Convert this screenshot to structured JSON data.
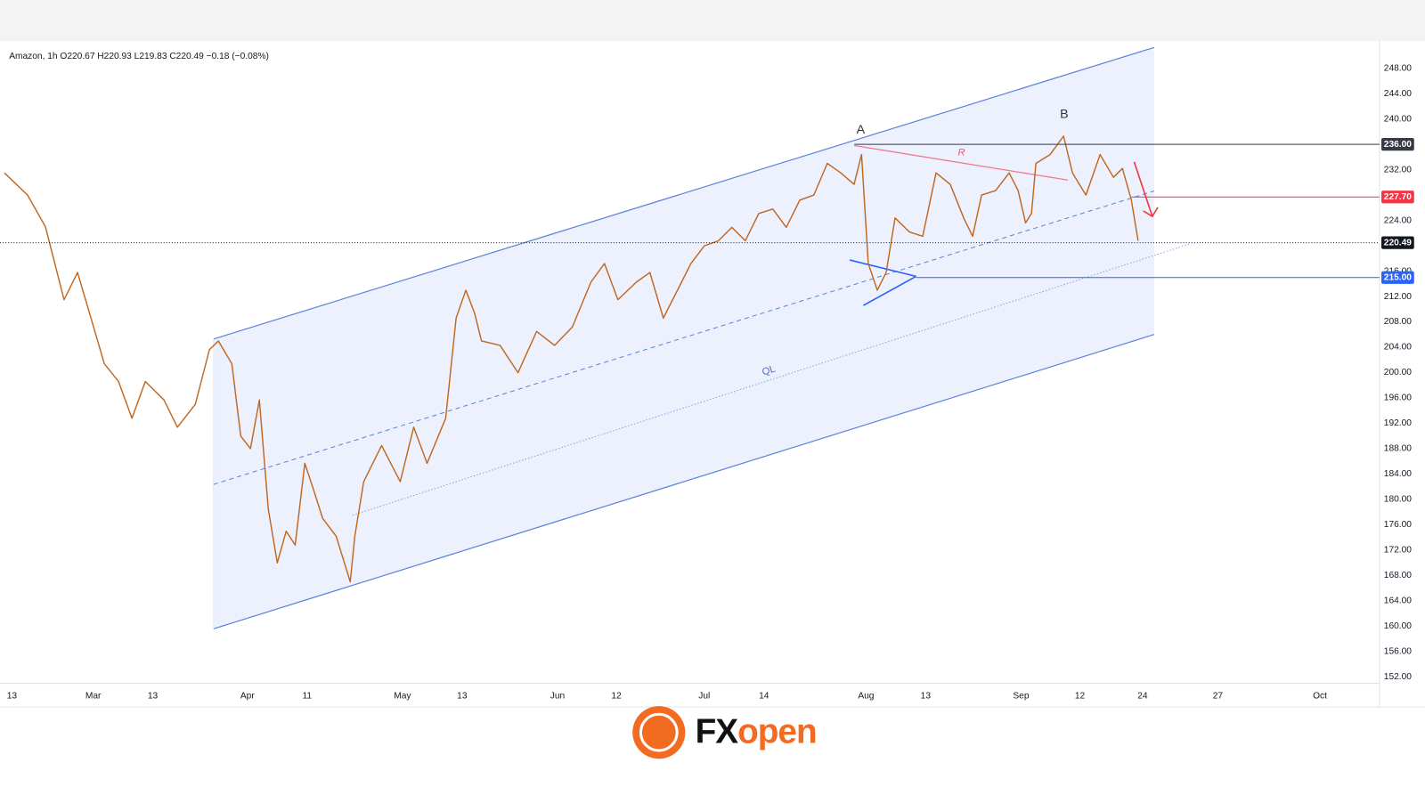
{
  "chart_data": {
    "type": "line",
    "title": "Amazon, 1h  O220.67  H220.93  L219.83  C220.49  −0.18 (−0.08%)",
    "x": [
      -1.0,
      2.1,
      4.5,
      7.0,
      8.8,
      10.6,
      12.4,
      14.3,
      16.1,
      17.9,
      20.4,
      22.2,
      24.6,
      26.5,
      27.7,
      29.5,
      30.7,
      32.0,
      33.2,
      34.4,
      35.6,
      36.8,
      38.0,
      39.3,
      40.5,
      41.7,
      43.5,
      45.4,
      46.0,
      47.2,
      49.6,
      52.1,
      53.9,
      55.7,
      58.2,
      59.6,
      60.9,
      62.1,
      63.0,
      65.5,
      67.9,
      70.4,
      72.8,
      75.2,
      77.7,
      79.5,
      81.3,
      83.8,
      85.6,
      87.4,
      89.3,
      91.1,
      92.9,
      94.8,
      96.6,
      98.4,
      100.2,
      102.1,
      103.9,
      105.7,
      107.6,
      109.4,
      111.2,
      113.0,
      114.0,
      114.9,
      116.1,
      117.3,
      118.5,
      120.4,
      122.2,
      124.0,
      125.9,
      127.7,
      128.9,
      130.1,
      132.0,
      133.8,
      135.0,
      136.0,
      136.8,
      137.4,
      139.3,
      141.1,
      142.3,
      144.1,
      146.0,
      147.8,
      149.0,
      150.2,
      151.1
    ],
    "values": [
      231.5,
      228,
      223,
      211.5,
      215.8,
      208.6,
      201.4,
      198.6,
      192.8,
      198.6,
      195.7,
      191.4,
      195,
      203.6,
      205,
      201.4,
      190,
      188,
      195.7,
      178.5,
      170,
      175,
      172.8,
      185.7,
      181.4,
      177,
      174.2,
      167,
      174.2,
      182.8,
      188.5,
      182.8,
      191.4,
      185.7,
      192.8,
      208.6,
      213,
      209.3,
      205,
      204.3,
      200,
      206.5,
      204.3,
      207.2,
      214.3,
      217.2,
      211.5,
      214.3,
      215.8,
      208.6,
      213,
      217.2,
      220,
      220.8,
      222.9,
      220.8,
      225.1,
      225.8,
      222.9,
      227.2,
      228,
      233,
      231.5,
      229.7,
      234.4,
      217.2,
      213,
      215.8,
      224.4,
      222.2,
      221.5,
      231.5,
      229.7,
      224.4,
      221.5,
      228,
      228.7,
      231.5,
      228.7,
      223.6,
      225.1,
      233,
      234.4,
      237.3,
      231.5,
      228,
      234.4,
      230.8,
      232.2,
      227.2,
      220.8
    ],
    "color": "#c0661e",
    "xlim": [
      -1.6,
      183.5
    ],
    "xticks": [
      {
        "value": 0,
        "label": "13"
      },
      {
        "value": 10.9,
        "label": "Mar"
      },
      {
        "value": 18.9,
        "label": "13"
      },
      {
        "value": 31.6,
        "label": "Apr"
      },
      {
        "value": 39.6,
        "label": "11"
      },
      {
        "value": 52.4,
        "label": "May"
      },
      {
        "value": 60.4,
        "label": "13"
      },
      {
        "value": 73.2,
        "label": "Jun"
      },
      {
        "value": 81.1,
        "label": "12"
      },
      {
        "value": 92.9,
        "label": "Jul"
      },
      {
        "value": 100.9,
        "label": "14"
      },
      {
        "value": 114.6,
        "label": "Aug"
      },
      {
        "value": 122.6,
        "label": "13"
      },
      {
        "value": 135.4,
        "label": "Sep"
      },
      {
        "value": 143.3,
        "label": "12"
      },
      {
        "value": 151.7,
        "label": "24"
      },
      {
        "value": 161.8,
        "label": "27"
      },
      {
        "value": 175.5,
        "label": "Oct"
      }
    ],
    "ylim": [
      151,
      252
    ],
    "yticks": [
      {
        "value": 152,
        "label": "152.00"
      },
      {
        "value": 156,
        "label": "156.00"
      },
      {
        "value": 160,
        "label": "160.00"
      },
      {
        "value": 164,
        "label": "164.00"
      },
      {
        "value": 168,
        "label": "168.00"
      },
      {
        "value": 172,
        "label": "172.00"
      },
      {
        "value": 176,
        "label": "176.00"
      },
      {
        "value": 180,
        "label": "180.00"
      },
      {
        "value": 184,
        "label": "184.00"
      },
      {
        "value": 188,
        "label": "188.00"
      },
      {
        "value": 192,
        "label": "192.00"
      },
      {
        "value": 196,
        "label": "196.00"
      },
      {
        "value": 200,
        "label": "200.00"
      },
      {
        "value": 204,
        "label": "204.00"
      },
      {
        "value": 208,
        "label": "208.00"
      },
      {
        "value": 212,
        "label": "212.00"
      },
      {
        "value": 216,
        "label": "216.00"
      },
      {
        "value": 224,
        "label": "224.00"
      },
      {
        "value": 232,
        "label": "232.00"
      },
      {
        "value": 240,
        "label": "240.00"
      },
      {
        "value": 244,
        "label": "244.00"
      },
      {
        "value": 248,
        "label": "248.00"
      }
    ],
    "grid": false,
    "levels": [
      {
        "value": 236,
        "label": "236.00",
        "color": "#363a45"
      },
      {
        "value": 227.7,
        "label": "227.70",
        "color": "#f23645"
      },
      {
        "value": 220.49,
        "label": "220.49",
        "color": "#131722"
      },
      {
        "value": 215,
        "label": "215.00",
        "color": "#2962ff"
      }
    ],
    "annotations": [
      "A",
      "B",
      "R",
      "QL"
    ]
  },
  "logo_text": [
    "FX",
    "open"
  ]
}
